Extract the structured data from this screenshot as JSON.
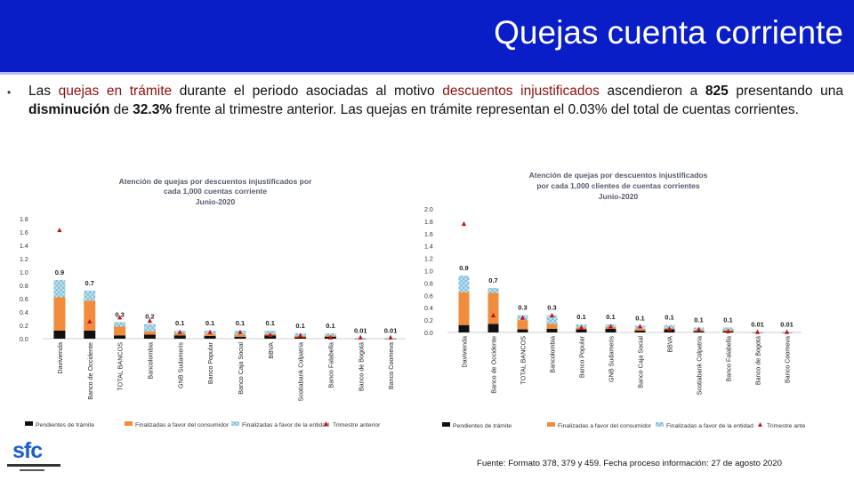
{
  "header": {
    "title": "Quejas cuenta corriente"
  },
  "summary": {
    "t1": "Las ",
    "t2": "quejas en trámite",
    "t3": " durante el periodo asociadas al motivo ",
    "t4": "descuentos injustificados",
    "t5": "  ascendieron a ",
    "t6": "825",
    "t7": " presentando una ",
    "t8": "disminución",
    "t9": " de ",
    "t10": "32.3%",
    "t11": " frente al trimestre anterior. Las quejas en trámite representan el 0.03% del total de cuentas corrientes."
  },
  "source": "Fuente: Formato 378, 379 y 459. Fecha proceso información: 27 de agosto 2020",
  "logo": {
    "text": "sfc"
  },
  "colors": {
    "header_bg": "#0a1ec8",
    "pendientes": "#111111",
    "consumidor": "#f08c3c",
    "entidad": "#7fbfd8",
    "trimestre": "#c0141c"
  },
  "chart_data": [
    {
      "type": "bar",
      "stacked": true,
      "title": [
        "Atención de quejas por descuentos injustificados por",
        "cada 1,000 cuentas corriente",
        "Junio-2020"
      ],
      "ylim": [
        0,
        1.8
      ],
      "yticks": [
        "0.0",
        "0.2",
        "0.4",
        "0.6",
        "0.8",
        "1.0",
        "1.2",
        "1.4",
        "1.6",
        "1.8"
      ],
      "categories": [
        "Davivienda",
        "Banco de Occidente",
        "TOTAL BANCOS",
        "Bancolombia",
        "GNB Sudameris",
        "Banco Popular",
        "Banco Caja Social",
        "BBVA",
        "Scotiabank Colpatria",
        "Banco Falabella",
        "Banco de Bogotá",
        "Banco Coomeva"
      ],
      "totals_labels": [
        "0.9",
        "0.7",
        "0.3",
        "0.2",
        "0.1",
        "0.1",
        "0.1",
        "0.1",
        "0.1",
        "0.1",
        "0.01",
        "0.01"
      ],
      "series": [
        {
          "name": "Pendientes de trámite",
          "values": [
            0.12,
            0.12,
            0.05,
            0.06,
            0.05,
            0.04,
            0.03,
            0.05,
            0.02,
            0.03,
            0.005,
            0.005
          ]
        },
        {
          "name": "Finalizadas a favor del consumidor",
          "values": [
            0.5,
            0.45,
            0.13,
            0.05,
            0.03,
            0.03,
            0.03,
            0.02,
            0.02,
            0.02,
            0.0,
            0.0
          ]
        },
        {
          "name": "Finalizadas a favor de la entidad",
          "values": [
            0.26,
            0.15,
            0.07,
            0.11,
            0.04,
            0.05,
            0.06,
            0.05,
            0.04,
            0.03,
            0.005,
            0.005
          ]
        }
      ],
      "marker_series": {
        "name": "Trimestre anterior",
        "values": [
          1.63,
          0.26,
          0.32,
          0.27,
          0.1,
          0.1,
          0.1,
          0.06,
          0.05,
          0.02,
          0.02,
          0.02
        ]
      }
    },
    {
      "type": "bar",
      "stacked": true,
      "title": [
        "Atención de quejas por descuentos injustificados",
        "por cada 1,000 clientes de cuentas corrientes",
        "Junio-2020"
      ],
      "ylim": [
        0,
        2.0
      ],
      "yticks": [
        "0.0",
        "0.2",
        "0.4",
        "0.6",
        "0.8",
        "1.0",
        "1.2",
        "1.4",
        "1.6",
        "1.8",
        "2.0"
      ],
      "categories": [
        "Davivienda",
        "Banco de Occidente",
        "TOTAL BANCOS",
        "Bancolombia",
        "Banco Popular",
        "GNB Sudameris",
        "Banco Caja Social",
        "BBVA",
        "Scotiabank Colpatria",
        "Banco Falabella",
        "Banco de Bogotá",
        "Banco Coomeva"
      ],
      "totals_labels": [
        "0.9",
        "0.7",
        "0.3",
        "0.3",
        "0.1",
        "0.1",
        "0.1",
        "0.1",
        "0.1",
        "0.1",
        "0.01",
        "0.01"
      ],
      "series": [
        {
          "name": "Pendientes de trámite",
          "values": [
            0.12,
            0.14,
            0.05,
            0.06,
            0.05,
            0.06,
            0.03,
            0.05,
            0.02,
            0.02,
            0.005,
            0.005
          ]
        },
        {
          "name": "Finalizadas a favor del consumidor",
          "values": [
            0.53,
            0.5,
            0.15,
            0.08,
            0.03,
            0.03,
            0.03,
            0.02,
            0.02,
            0.02,
            0.0,
            0.0
          ]
        },
        {
          "name": "Finalizadas a favor de la entidad",
          "values": [
            0.27,
            0.08,
            0.08,
            0.14,
            0.05,
            0.04,
            0.05,
            0.05,
            0.04,
            0.04,
            0.005,
            0.005
          ]
        }
      ],
      "marker_series": {
        "name": "Trimestre anterior",
        "values": [
          1.76,
          0.28,
          0.24,
          0.28,
          0.08,
          0.1,
          0.1,
          0.06,
          0.05,
          0.02,
          0.01,
          0.01
        ]
      }
    }
  ],
  "legends": [
    [
      "Pendientes de trámite",
      "Finalizadas a favor del consumidor",
      "Finalizadas a favor de la entidad",
      "Trimestre anterior"
    ],
    [
      "Pendientes de trámite",
      "Finalizadas a favor del consumidor",
      "Finalizadas a favor de la entidad",
      "Trimestre anterior"
    ]
  ]
}
